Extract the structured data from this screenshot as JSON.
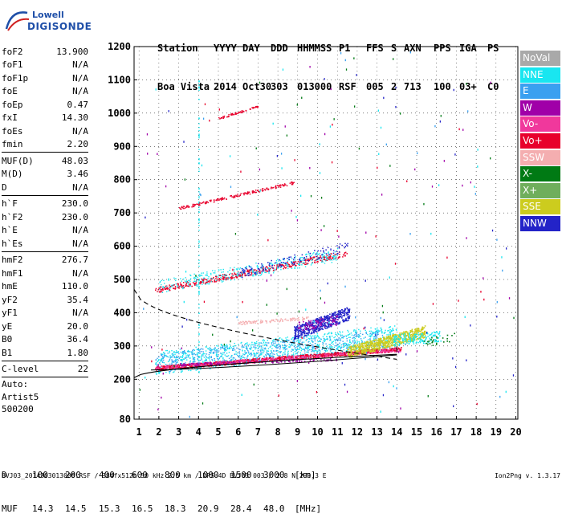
{
  "logo": {
    "line1": "Lowell",
    "line2": "DIGISONDE"
  },
  "header": {
    "row1": [
      "Station",
      "YYYY",
      "DAY",
      "DDD",
      "HHMMSS",
      "P1",
      "FFS",
      "S",
      "AXN",
      "PPS",
      "IGA",
      "PS"
    ],
    "row2": [
      "Boa Vista",
      "2014",
      "Oct30",
      "303",
      "013000",
      "RSF",
      "005",
      "2",
      "713",
      "100",
      "03+",
      "C0"
    ]
  },
  "params": {
    "group1": [
      {
        "name": "foF2",
        "value": "13.900"
      },
      {
        "name": "foF1",
        "value": "N/A"
      },
      {
        "name": "foF1p",
        "value": "N/A"
      },
      {
        "name": "foE",
        "value": "N/A"
      },
      {
        "name": "foEp",
        "value": "0.47"
      },
      {
        "name": "fxI",
        "value": "14.30"
      },
      {
        "name": "foEs",
        "value": "N/A"
      },
      {
        "name": "fmin",
        "value": "2.20"
      }
    ],
    "group2": [
      {
        "name": "MUF(D)",
        "value": "48.03"
      },
      {
        "name": "M(D)",
        "value": "3.46"
      },
      {
        "name": "D",
        "value": "N/A"
      }
    ],
    "group3": [
      {
        "name": "h`F",
        "value": "230.0"
      },
      {
        "name": "h`F2",
        "value": "230.0"
      },
      {
        "name": "h`E",
        "value": "N/A"
      },
      {
        "name": "h`Es",
        "value": "N/A"
      }
    ],
    "group4": [
      {
        "name": "hmF2",
        "value": "276.7"
      },
      {
        "name": "hmF1",
        "value": "N/A"
      },
      {
        "name": "hmE",
        "value": "110.0"
      },
      {
        "name": "yF2",
        "value": "35.4"
      },
      {
        "name": "yF1",
        "value": "N/A"
      },
      {
        "name": "yE",
        "value": "20.0"
      },
      {
        "name": "B0",
        "value": "36.4"
      },
      {
        "name": "B1",
        "value": "1.80"
      }
    ],
    "group5": [
      {
        "name": "C-level",
        "value": "22"
      }
    ],
    "autoscale": [
      "Auto:",
      "Artist5",
      "500200"
    ]
  },
  "legend": [
    {
      "label": "NoVal",
      "color": "#a9a9a9"
    },
    {
      "label": "NNE",
      "color": "#19e6f0"
    },
    {
      "label": "E",
      "color": "#3aa0f0"
    },
    {
      "label": "W",
      "color": "#a000a8"
    },
    {
      "label": "Vo-",
      "color": "#f0389c"
    },
    {
      "label": "Vo+",
      "color": "#e8002c"
    },
    {
      "label": "SSW",
      "color": "#f4aeb0"
    },
    {
      "label": "X-",
      "color": "#007a14"
    },
    {
      "label": "X+",
      "color": "#6fae5c"
    },
    {
      "label": "SSE",
      "color": "#cccc1e"
    },
    {
      "label": "NNW",
      "color": "#2323c8"
    }
  ],
  "footer": {
    "d_label": "D",
    "d_values": [
      "100",
      "200",
      "400",
      "600",
      "800",
      "1000",
      "1500",
      "3000"
    ],
    "d_unit": "[km]",
    "muf_label": "MUF",
    "muf_values": [
      "14.3",
      "14.5",
      "15.3",
      "16.5",
      "18.3",
      "20.9",
      "28.4",
      "48.0"
    ],
    "muf_unit": "[MHz]",
    "file_info": "BVJ03_2014303013000.RSF / 384fx512h 50 kHz 2.5 km / DPS-4D BVJ03 003 / 2.8 N 299.3 E",
    "version": "Ion2Png v. 1.3.17"
  },
  "chart_data": {
    "type": "scatter",
    "x_ticks": [
      "1",
      "2",
      "3",
      "4",
      "5",
      "6",
      "7",
      "8",
      "9",
      "10",
      "11",
      "12",
      "13",
      "14",
      "15",
      "16",
      "17",
      "18",
      "19",
      "20"
    ],
    "y_ticks": [
      "80",
      "200",
      "300",
      "400",
      "500",
      "600",
      "700",
      "800",
      "900",
      "1000",
      "1100",
      "1200"
    ],
    "xlim": [
      0.75,
      20.1
    ],
    "y_range": [
      80,
      1200
    ],
    "grid": true,
    "xlabel": "",
    "ylabel": "",
    "traces": [
      {
        "name": "F2 trace",
        "x_range": [
          1.8,
          14.2
        ],
        "y_range": [
          232,
          290
        ],
        "color": "#e8002c"
      },
      {
        "name": "F2 2nd hop",
        "x_range": [
          1.8,
          11.5
        ],
        "y_range": [
          465,
          580
        ],
        "color": "#e8002c"
      },
      {
        "name": "F2 3rd hop",
        "x_range": [
          3.0,
          8.8
        ],
        "y_range": [
          715,
          790
        ],
        "color": "#e8002c"
      },
      {
        "name": "F2 4th hop",
        "x_range": [
          5.0,
          7.0
        ],
        "y_range": [
          985,
          1020
        ],
        "color": "#e8002c"
      },
      {
        "name": "spread F",
        "x_range": [
          1.8,
          14.0
        ],
        "y_range": [
          240,
          360
        ],
        "color": "#19e6f0"
      },
      {
        "name": "oblique echoes",
        "x_range": [
          8.8,
          11.6
        ],
        "y_range": [
          330,
          410
        ],
        "color": "#2323c8"
      },
      {
        "name": "SSE cluster",
        "x_range": [
          12.8,
          15.5
        ],
        "y_range": [
          270,
          370
        ],
        "color": "#cccc1e"
      }
    ],
    "profile": {
      "foF2": 13.9,
      "hmF2": 276.7
    }
  }
}
